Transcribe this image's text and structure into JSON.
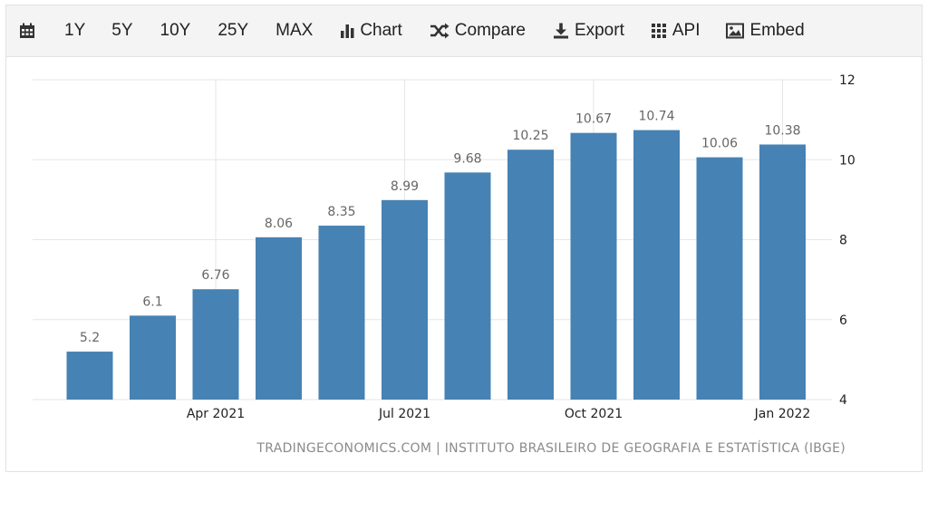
{
  "toolbar": {
    "items": [
      {
        "label": "",
        "icon": "calendar-icon"
      },
      {
        "label": "1Y"
      },
      {
        "label": "5Y"
      },
      {
        "label": "10Y"
      },
      {
        "label": "25Y"
      },
      {
        "label": "MAX"
      },
      {
        "label": "Chart",
        "icon": "bar-chart-icon"
      },
      {
        "label": "Compare",
        "icon": "shuffle-icon"
      },
      {
        "label": "Export",
        "icon": "download-icon"
      },
      {
        "label": "API",
        "icon": "grid-icon"
      },
      {
        "label": "Embed",
        "icon": "image-icon"
      }
    ]
  },
  "source_text": "TRADINGECONOMICS.COM | INSTITUTO BRASILEIRO DE GEOGRAFIA E ESTATÍSTICA (IBGE)",
  "colors": {
    "bar": "#4682b4",
    "grid": "#e6e6e6",
    "label": "#666666"
  },
  "chart_data": {
    "type": "bar",
    "x": [
      "2021-02",
      "2021-03",
      "2021-04",
      "2021-05",
      "2021-06",
      "2021-07",
      "2021-08",
      "2021-09",
      "2021-10",
      "2021-11",
      "2021-12",
      "2022-01"
    ],
    "values": [
      5.2,
      6.1,
      6.76,
      8.06,
      8.35,
      8.99,
      9.68,
      10.25,
      10.67,
      10.74,
      10.06,
      10.38
    ],
    "value_labels": [
      "5.2",
      "6.1",
      "6.76",
      "8.06",
      "8.35",
      "8.99",
      "9.68",
      "10.25",
      "10.67",
      "10.74",
      "10.06",
      "10.38"
    ],
    "x_tick_labels": [
      "Apr 2021",
      "Jul 2021",
      "Oct 2021",
      "Jan 2022"
    ],
    "x_tick_positions": [
      "2021-04",
      "2021-07",
      "2021-10",
      "2022-01"
    ],
    "y_ticks": [
      4,
      6,
      8,
      10,
      12
    ],
    "ylim": [
      4,
      12
    ],
    "y_axis_side": "right",
    "grid": true,
    "title": "",
    "xlabel": "",
    "ylabel": ""
  }
}
